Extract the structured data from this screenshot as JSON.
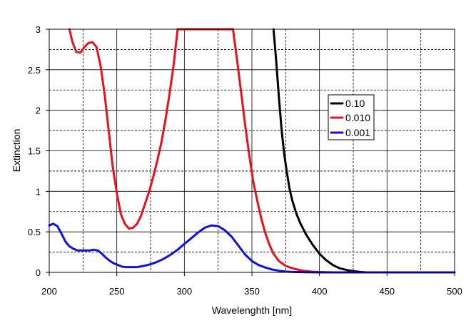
{
  "chart_data": {
    "type": "line",
    "title": "",
    "xlabel": "Wavelenghth [nm]",
    "ylabel": "Extinction",
    "xlim": [
      200,
      500
    ],
    "ylim": [
      0,
      3
    ],
    "x_ticks": [
      200,
      250,
      300,
      350,
      400,
      450,
      500
    ],
    "x_tick_labels": [
      "200",
      "250",
      "300",
      "350",
      "400",
      "450",
      "500"
    ],
    "y_ticks": [
      0,
      0.5,
      1,
      1.5,
      2,
      2.5,
      3
    ],
    "y_tick_labels": [
      "0",
      "0.5",
      "1",
      "1.5",
      "2",
      "2.5",
      "3"
    ],
    "x_grid_minor": [
      225,
      275,
      325,
      375,
      425,
      475
    ],
    "y_grid_minor": [
      0.25,
      0.75,
      1.25,
      1.75,
      2.25,
      2.75
    ],
    "grid": true,
    "legend_position": "right-center",
    "series": [
      {
        "name": "0.10",
        "color": "#000000",
        "x": [
          366,
          368,
          370,
          372,
          374,
          376,
          378,
          380,
          383,
          386,
          390,
          395,
          400,
          405,
          410,
          415,
          420,
          425,
          430,
          435
        ],
        "y": [
          3.0,
          2.6,
          2.15,
          1.75,
          1.45,
          1.22,
          1.02,
          0.88,
          0.72,
          0.6,
          0.47,
          0.34,
          0.23,
          0.15,
          0.09,
          0.05,
          0.03,
          0.015,
          0.005,
          0.0
        ]
      },
      {
        "name": "0.010",
        "color": "#e8101a",
        "x": [
          215,
          217,
          220,
          223,
          226,
          229,
          232,
          235,
          238,
          241,
          244,
          247,
          250,
          253,
          256,
          259,
          262,
          265,
          268,
          271,
          274,
          277,
          280,
          283,
          286,
          289,
          292,
          295,
          336,
          339,
          342,
          345,
          348,
          351,
          354,
          357,
          360,
          363,
          366,
          370,
          375,
          380,
          385,
          390,
          395,
          400,
          405,
          410
        ],
        "y": [
          3.0,
          2.85,
          2.72,
          2.71,
          2.78,
          2.83,
          2.84,
          2.78,
          2.55,
          2.2,
          1.75,
          1.3,
          0.98,
          0.72,
          0.6,
          0.54,
          0.55,
          0.6,
          0.7,
          0.85,
          1.0,
          1.18,
          1.38,
          1.6,
          1.88,
          2.2,
          2.55,
          3.0,
          3.0,
          2.62,
          2.22,
          1.82,
          1.45,
          1.12,
          0.88,
          0.66,
          0.48,
          0.34,
          0.23,
          0.14,
          0.08,
          0.05,
          0.03,
          0.015,
          0.008,
          0.004,
          0.002,
          0.0
        ]
      },
      {
        "name": "0.001",
        "color": "#1010e0",
        "x": [
          200,
          203,
          206,
          209,
          212,
          215,
          218,
          221,
          224,
          227,
          230,
          233,
          236,
          239,
          242,
          245,
          248,
          251,
          254,
          257,
          260,
          265,
          270,
          275,
          280,
          285,
          290,
          295,
          300,
          305,
          310,
          315,
          320,
          325,
          330,
          335,
          340,
          345,
          350,
          355,
          360,
          365,
          370,
          375,
          380,
          390,
          400,
          420,
          450,
          480,
          500
        ],
        "y": [
          0.58,
          0.6,
          0.57,
          0.48,
          0.38,
          0.32,
          0.29,
          0.27,
          0.27,
          0.27,
          0.27,
          0.28,
          0.27,
          0.23,
          0.18,
          0.14,
          0.11,
          0.09,
          0.07,
          0.065,
          0.065,
          0.065,
          0.08,
          0.1,
          0.13,
          0.17,
          0.22,
          0.28,
          0.35,
          0.42,
          0.49,
          0.55,
          0.58,
          0.57,
          0.52,
          0.44,
          0.33,
          0.22,
          0.14,
          0.09,
          0.06,
          0.035,
          0.02,
          0.01,
          0.005,
          0.002,
          0.0,
          0.0,
          0.0,
          0.0,
          0.0
        ]
      }
    ]
  }
}
